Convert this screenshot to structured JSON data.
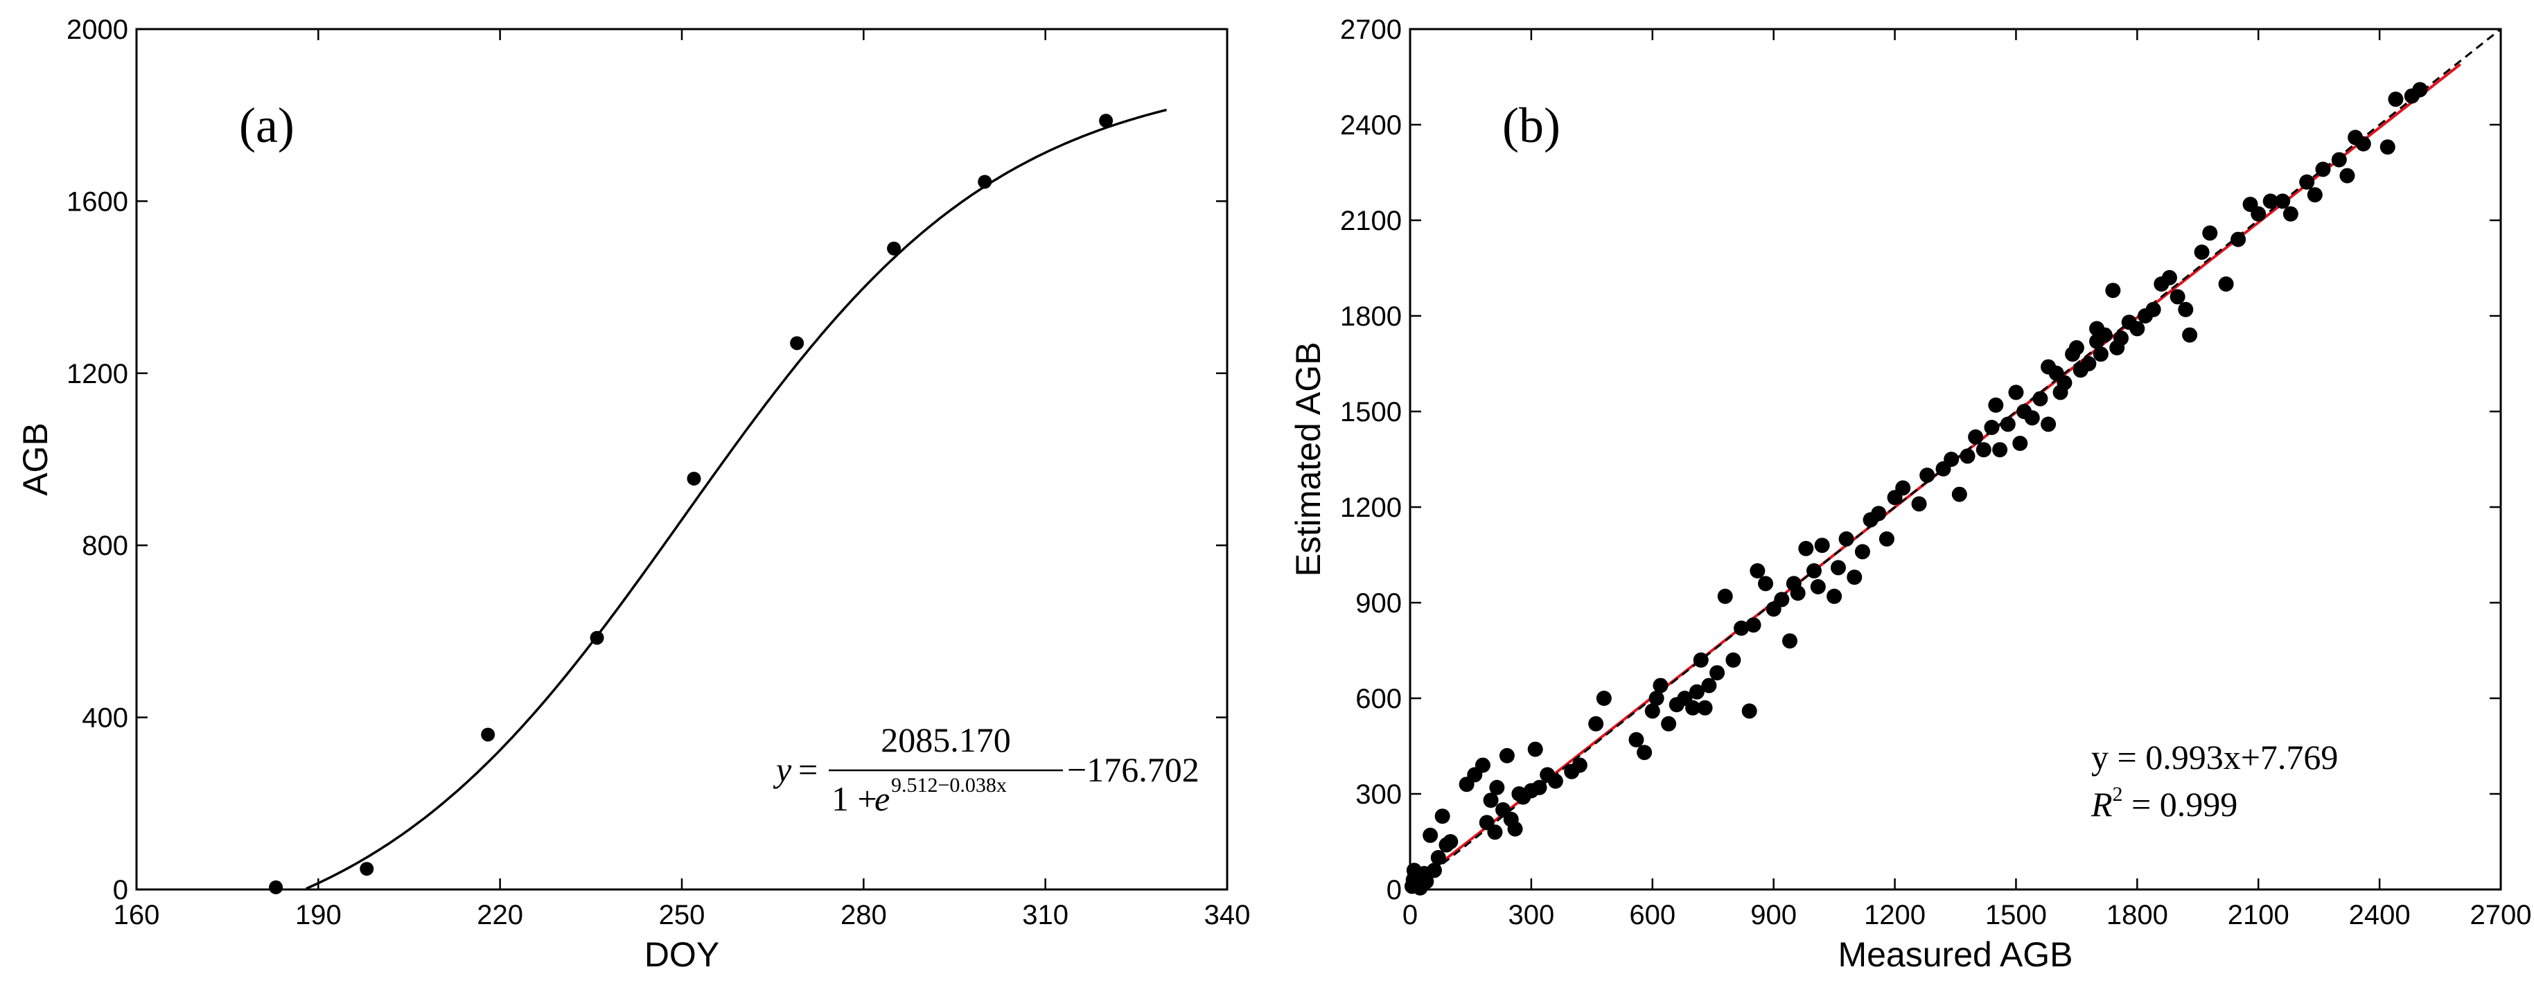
{
  "chart_data": [
    {
      "type": "scatter",
      "panel_label": "(a)",
      "xlabel": "DOY",
      "ylabel": "AGB",
      "xlim": [
        160,
        340
      ],
      "ylim": [
        0,
        2000
      ],
      "xticks": [
        160,
        190,
        220,
        250,
        280,
        310,
        340
      ],
      "yticks": [
        0,
        400,
        800,
        1200,
        1600,
        2000
      ],
      "points": [
        {
          "x": 183,
          "y": 5
        },
        {
          "x": 198,
          "y": 48
        },
        {
          "x": 218,
          "y": 360
        },
        {
          "x": 236,
          "y": 585
        },
        {
          "x": 252,
          "y": 955
        },
        {
          "x": 269,
          "y": 1270
        },
        {
          "x": 285,
          "y": 1490
        },
        {
          "x": 300,
          "y": 1645
        },
        {
          "x": 320,
          "y": 1787
        }
      ],
      "fit": {
        "K": 2085.17,
        "a": 9.512,
        "b": 0.038,
        "c": -176.702,
        "x_range": [
          160,
          330
        ]
      },
      "equation": {
        "y": "y",
        "eq": "=",
        "numerator": "2085.170",
        "denominator_prefix": "1 + ",
        "e": "e",
        "exponent": "9.512−0.038x",
        "suffix": "−176.702"
      }
    },
    {
      "type": "scatter",
      "panel_label": "(b)",
      "xlabel": "Measured AGB",
      "ylabel": "Estimated AGB",
      "xlim": [
        0,
        2700
      ],
      "ylim": [
        0,
        2700
      ],
      "xticks": [
        0,
        300,
        600,
        900,
        1200,
        1500,
        1800,
        2100,
        2400,
        2700
      ],
      "yticks": [
        0,
        300,
        600,
        900,
        1200,
        1500,
        1800,
        2100,
        2400,
        2700
      ],
      "series": [
        {
          "name": "regression",
          "slope": 0.993,
          "intercept": 7.769,
          "x_range": [
            0,
            2600
          ],
          "color": "#e0141e"
        },
        {
          "name": "1:1 line",
          "slope": 1,
          "intercept": 0,
          "x_range": [
            0,
            2700
          ],
          "color": "#000000"
        }
      ],
      "equation_line1": "y = 0.993x+7.769",
      "r2_label": "R",
      "r2_sup": "2",
      "r2_value": " = 0.999",
      "points": [
        [
          5,
          10
        ],
        [
          8,
          30
        ],
        [
          12,
          45
        ],
        [
          15,
          20
        ],
        [
          20,
          35
        ],
        [
          25,
          5
        ],
        [
          30,
          15
        ],
        [
          35,
          50
        ],
        [
          10,
          60
        ],
        [
          40,
          25
        ],
        [
          50,
          170
        ],
        [
          60,
          60
        ],
        [
          70,
          100
        ],
        [
          80,
          230
        ],
        [
          90,
          140
        ],
        [
          100,
          150
        ],
        [
          140,
          330
        ],
        [
          160,
          360
        ],
        [
          180,
          390
        ],
        [
          190,
          210
        ],
        [
          200,
          280
        ],
        [
          210,
          180
        ],
        [
          215,
          320
        ],
        [
          230,
          250
        ],
        [
          240,
          420
        ],
        [
          250,
          220
        ],
        [
          260,
          190
        ],
        [
          270,
          300
        ],
        [
          280,
          290
        ],
        [
          300,
          310
        ],
        [
          310,
          440
        ],
        [
          320,
          320
        ],
        [
          340,
          360
        ],
        [
          360,
          340
        ],
        [
          400,
          370
        ],
        [
          420,
          390
        ],
        [
          460,
          520
        ],
        [
          480,
          600
        ],
        [
          560,
          470
        ],
        [
          580,
          430
        ],
        [
          600,
          560
        ],
        [
          610,
          600
        ],
        [
          620,
          640
        ],
        [
          640,
          520
        ],
        [
          660,
          580
        ],
        [
          680,
          600
        ],
        [
          700,
          570
        ],
        [
          710,
          620
        ],
        [
          720,
          720
        ],
        [
          730,
          570
        ],
        [
          740,
          640
        ],
        [
          760,
          680
        ],
        [
          780,
          920
        ],
        [
          800,
          720
        ],
        [
          820,
          820
        ],
        [
          840,
          560
        ],
        [
          850,
          830
        ],
        [
          860,
          1000
        ],
        [
          880,
          960
        ],
        [
          900,
          880
        ],
        [
          920,
          910
        ],
        [
          940,
          780
        ],
        [
          950,
          960
        ],
        [
          960,
          930
        ],
        [
          980,
          1070
        ],
        [
          1000,
          1000
        ],
        [
          1010,
          950
        ],
        [
          1020,
          1080
        ],
        [
          1050,
          920
        ],
        [
          1060,
          1010
        ],
        [
          1080,
          1100
        ],
        [
          1100,
          980
        ],
        [
          1120,
          1060
        ],
        [
          1140,
          1160
        ],
        [
          1160,
          1180
        ],
        [
          1180,
          1100
        ],
        [
          1200,
          1230
        ],
        [
          1220,
          1260
        ],
        [
          1260,
          1210
        ],
        [
          1280,
          1300
        ],
        [
          1320,
          1320
        ],
        [
          1360,
          1240
        ],
        [
          1380,
          1360
        ],
        [
          1400,
          1420
        ],
        [
          1420,
          1380
        ],
        [
          1440,
          1450
        ],
        [
          1450,
          1520
        ],
        [
          1460,
          1380
        ],
        [
          1480,
          1460
        ],
        [
          1500,
          1560
        ],
        [
          1510,
          1400
        ],
        [
          1520,
          1500
        ],
        [
          1540,
          1480
        ],
        [
          1560,
          1540
        ],
        [
          1580,
          1460
        ],
        [
          1600,
          1620
        ],
        [
          1610,
          1560
        ],
        [
          1620,
          1590
        ],
        [
          1640,
          1680
        ],
        [
          1650,
          1700
        ],
        [
          1660,
          1630
        ],
        [
          1680,
          1650
        ],
        [
          1700,
          1720
        ],
        [
          1710,
          1680
        ],
        [
          1720,
          1740
        ],
        [
          1740,
          1880
        ],
        [
          1750,
          1700
        ],
        [
          1760,
          1730
        ],
        [
          1780,
          1780
        ],
        [
          1800,
          1760
        ],
        [
          1820,
          1800
        ],
        [
          1840,
          1820
        ],
        [
          1860,
          1900
        ],
        [
          1880,
          1920
        ],
        [
          1900,
          1860
        ],
        [
          1920,
          1820
        ],
        [
          1930,
          1740
        ],
        [
          1960,
          2000
        ],
        [
          1980,
          2060
        ],
        [
          2020,
          1900
        ],
        [
          2050,
          2040
        ],
        [
          2080,
          2150
        ],
        [
          2100,
          2120
        ],
        [
          2130,
          2160
        ],
        [
          2160,
          2160
        ],
        [
          2180,
          2120
        ],
        [
          2220,
          2220
        ],
        [
          2240,
          2180
        ],
        [
          2260,
          2260
        ],
        [
          2300,
          2290
        ],
        [
          2320,
          2240
        ],
        [
          2340,
          2360
        ],
        [
          2360,
          2340
        ],
        [
          2420,
          2330
        ],
        [
          2440,
          2480
        ],
        [
          2480,
          2490
        ],
        [
          2500,
          2510
        ],
        [
          1700,
          1760
        ],
        [
          1580,
          1640
        ],
        [
          1340,
          1350
        ]
      ]
    }
  ]
}
